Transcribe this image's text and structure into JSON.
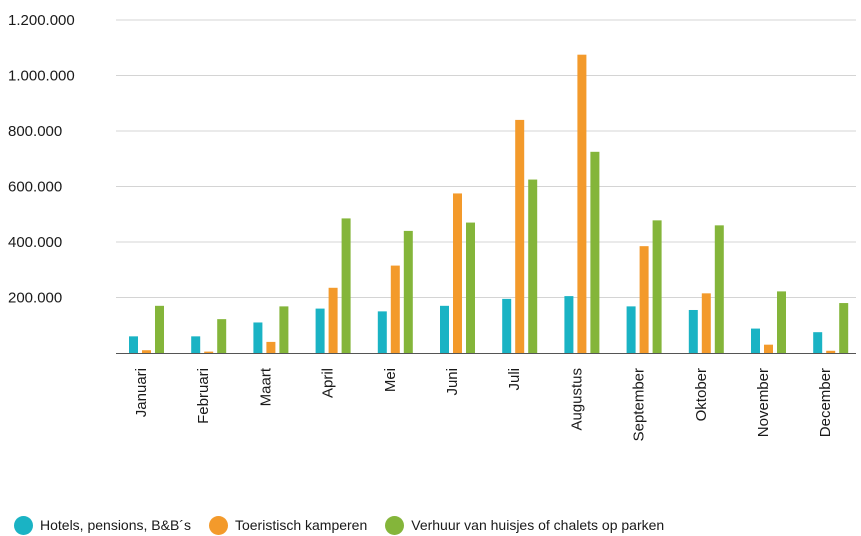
{
  "chart_data": {
    "type": "bar",
    "categories": [
      "Januari",
      "Februari",
      "Maart",
      "April",
      "Mei",
      "Juni",
      "Juli",
      "Augustus",
      "September",
      "Oktober",
      "November",
      "December"
    ],
    "series": [
      {
        "name": "Hotels, pensions, B&B´s",
        "color": "#1ab3c4",
        "values": [
          60000,
          60000,
          110000,
          160000,
          150000,
          170000,
          195000,
          205000,
          168000,
          155000,
          88000,
          75000
        ]
      },
      {
        "name": "Toeristisch kamperen",
        "color": "#f39a2b",
        "values": [
          10000,
          5000,
          40000,
          235000,
          315000,
          575000,
          840000,
          1075000,
          385000,
          215000,
          30000,
          8000
        ]
      },
      {
        "name": "Verhuur van huisjes of chalets op parken",
        "color": "#84b53a",
        "values": [
          170000,
          122000,
          168000,
          485000,
          440000,
          470000,
          625000,
          725000,
          478000,
          460000,
          222000,
          180000
        ]
      }
    ],
    "yticks": [
      "200.000",
      "400.000",
      "600.000",
      "800.000",
      "1.000.000",
      "1.200.000"
    ],
    "ylim": [
      0,
      1200000
    ],
    "grid": true,
    "legend_position": "bottom-left"
  }
}
